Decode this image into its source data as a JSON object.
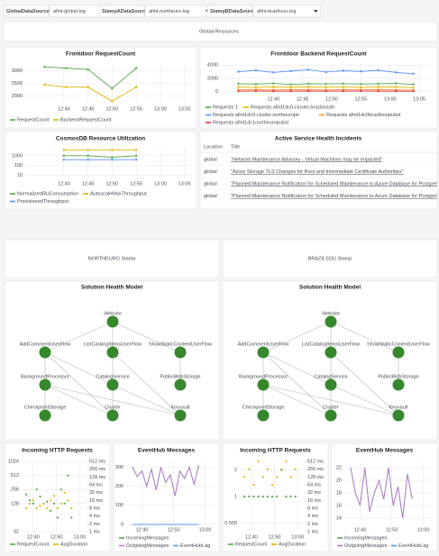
{
  "toolbar": {
    "variables": [
      {
        "label": "GlobalDataSource",
        "value": "afint-global-log"
      },
      {
        "label": "StampADataSource",
        "value": "afint-northeuro-log"
      },
      {
        "label": "StampBDataSource",
        "value": "afint-brazilsou-log"
      }
    ]
  },
  "row_title": "Global Resources",
  "incidents": {
    "title": "Active Service Health Incidents",
    "columns": [
      "Location",
      "Title"
    ],
    "rows": [
      [
        "global",
        "\"Network Maintenance Advisory - Virtual Machines may be impacted\""
      ],
      [
        "global",
        "\"Azure Storage TLS Changes for Root and Intermediate Certificate Authorities\""
      ],
      [
        "global",
        "\"Planned Maintenance Notification for Scheduled Maintenance to Azure Database for PostgreSQL\""
      ],
      [
        "global",
        "\"Planned Maintenance Notification for Scheduled Maintenance to Azure Database for PostgreSQL\""
      ]
    ]
  },
  "stamps": [
    {
      "title": "NORTHEURO Stamp",
      "health_model_title": "Solution Health Model"
    },
    {
      "title": "BRAZILSOU Stamp",
      "health_model_title": "Solution Health Model"
    }
  ],
  "health_model_nodes": [
    "Website",
    "AddCommentUserFlow",
    "ListCatalogItemsUserFlow",
    "ShowStaticContentUserFlow",
    "BackgroundProcessor",
    "CatalogService",
    "PublicBlobStorage",
    "CheckpointStorage",
    "Cluster",
    "Keyvault"
  ],
  "chart_data": [
    {
      "type": "line",
      "title": "Frontdoor RequestCount",
      "points": true,
      "grid": true,
      "x": [
        36,
        40.5,
        45,
        50,
        55
      ],
      "xlim": [
        32,
        66
      ],
      "xticks": [
        {
          "value": 40,
          "label": "12:40"
        },
        {
          "value": 45,
          "label": "12:45"
        },
        {
          "value": 50,
          "label": "12:50"
        },
        {
          "value": 55,
          "label": "12:55"
        },
        {
          "value": 60,
          "label": "13:00"
        },
        {
          "value": 65,
          "label": "13:05"
        }
      ],
      "ylim": [
        1700,
        3300
      ],
      "yticks": [
        2000,
        2500,
        3000
      ],
      "series": [
        {
          "name": "RequestCount",
          "color": "#56a64b",
          "values": [
            3150,
            3100,
            3050,
            2300,
            3100
          ]
        },
        {
          "name": "BackendRequestCount",
          "color": "#e0b400",
          "values": [
            2450,
            2350,
            2350,
            1800,
            2350
          ]
        }
      ]
    },
    {
      "type": "line",
      "title": "Frontdoor Backend RequestCount",
      "points": true,
      "grid": true,
      "x": [
        34,
        37,
        40,
        43,
        46,
        49,
        52,
        55,
        58,
        61,
        64
      ],
      "xlim": [
        31,
        67
      ],
      "xticks": [
        {
          "value": 40,
          "label": "12:40"
        },
        {
          "value": 45,
          "label": "12:45"
        },
        {
          "value": 50,
          "label": "12:50"
        },
        {
          "value": 55,
          "label": "12:55"
        },
        {
          "value": 60,
          "label": "13:00"
        },
        {
          "value": 65,
          "label": "13:05"
        }
      ],
      "ylim": [
        -300,
        4300
      ],
      "yticks": [
        0,
        2000,
        4000
      ],
      "series": [
        {
          "name": "Requests 1",
          "color": "#56a64b",
          "values": [
            1200,
            1150,
            1250,
            1100,
            1200,
            1180,
            1220,
            1150,
            1200,
            1250,
            1100
          ]
        },
        {
          "name": "Requests afint1dc0-cluster.brazilsouth",
          "color": "#e0b400",
          "values": [
            700,
            650,
            720,
            680,
            700,
            690,
            710,
            650,
            700,
            720,
            600
          ]
        },
        {
          "name": "Requests afint1dc0-cluster.northeurope",
          "color": "#5794f2",
          "values": [
            3000,
            3200,
            2900,
            3100,
            3300,
            2950,
            3150,
            3050,
            3200,
            2900,
            2700
          ]
        },
        {
          "name": "Requests afint1dc0brazilsoupubst",
          "color": "#ff9830",
          "values": [
            300,
            320,
            280,
            310,
            300,
            290,
            310,
            300,
            320,
            280,
            250
          ]
        },
        {
          "name": "Requests afint1dc1northeuropubst",
          "color": "#e02f44",
          "values": [
            100,
            110,
            90,
            100,
            105,
            95,
            100,
            110,
            100,
            90,
            80
          ]
        }
      ]
    },
    {
      "type": "line",
      "title": "CosmosDB Resource Utilization",
      "points": true,
      "grid": true,
      "log_scale": true,
      "x": [
        40,
        45,
        50,
        55
      ],
      "xlim": [
        32,
        66
      ],
      "xticks": [
        {
          "value": 40,
          "label": "12:40"
        },
        {
          "value": 45,
          "label": "12:45"
        },
        {
          "value": 50,
          "label": "12:50"
        },
        {
          "value": 55,
          "label": "12:55"
        },
        {
          "value": 60,
          "label": "13:00"
        },
        {
          "value": 65,
          "label": "13:05"
        }
      ],
      "ylim": [
        5,
        8000
      ],
      "yticks": [
        10,
        100,
        1000
      ],
      "series": [
        {
          "name": "NormalizedRUConsumption",
          "color": "#56a64b",
          "values": [
            1000,
            1000,
            700,
            1000
          ]
        },
        {
          "name": "AutoscaleMaxThroughput",
          "color": "#e0b400",
          "values": [
            4000,
            4000,
            4000,
            4000
          ]
        },
        {
          "name": "ProvisionedThroughput",
          "color": "#5794f2",
          "values": [
            400,
            400,
            400,
            400
          ]
        }
      ]
    },
    {
      "type": "scatter",
      "title": "Incoming HTTP Requests",
      "grid": true,
      "log_scale": true,
      "x": [
        37,
        38.5,
        40,
        41.5,
        43,
        44.5,
        46,
        47.5,
        49,
        50.5,
        52,
        53.5,
        55,
        56.5
      ],
      "xlim": [
        35,
        63
      ],
      "xticks": [
        {
          "value": 40,
          "label": "12:40"
        },
        {
          "value": 50,
          "label": "12:50"
        },
        {
          "value": 60,
          "label": "13:00"
        }
      ],
      "ylim": [
        32,
        1024
      ],
      "yticks": [
        1024,
        512,
        256,
        128,
        32
      ],
      "y2lim": [
        1,
        512
      ],
      "y2ticks": [
        {
          "value": 512,
          "label": "512 ms"
        },
        {
          "value": 256,
          "label": "256 ms"
        },
        {
          "value": 128,
          "label": "128 ms"
        },
        {
          "value": 64,
          "label": "64 ms"
        },
        {
          "value": 32,
          "label": "32 ms"
        },
        {
          "value": 16,
          "label": "16 ms"
        },
        {
          "value": 8,
          "label": "8 ms"
        },
        {
          "value": 4,
          "label": "4 ms"
        },
        {
          "value": 2,
          "label": "2 ms"
        },
        {
          "value": 1,
          "label": "1 ms"
        }
      ],
      "series": [
        {
          "name": "RequestCount",
          "color": "#56a64b",
          "values": [
            200,
            150,
            128,
            256,
            180,
            128,
            140,
            90,
            128,
            64,
            256,
            128,
            512,
            64
          ]
        },
        {
          "name": "AvgDuration",
          "color": "#e0b400",
          "axis": "y2",
          "values": [
            8,
            12,
            16,
            8,
            10,
            12,
            8,
            16,
            24,
            8,
            12,
            32,
            16,
            8
          ]
        }
      ]
    },
    {
      "type": "line",
      "title": "EventHub Messages",
      "grid": true,
      "x": [
        37,
        38.5,
        40,
        41.5,
        43,
        44.5,
        46,
        47.5,
        49,
        50.5,
        52,
        53.5,
        55,
        56.5,
        58
      ],
      "xlim": [
        35,
        63
      ],
      "xticks": [
        {
          "value": 40,
          "label": "12:40"
        },
        {
          "value": 50,
          "label": "12:50"
        },
        {
          "value": 60,
          "label": "13:00"
        }
      ],
      "ylim": [
        0,
        330
      ],
      "yticks": [
        0,
        100,
        200,
        300
      ],
      "series": [
        {
          "name": "IncomingMessages",
          "color": "#56a64b",
          "values": [
            300,
            250,
            280,
            200,
            290,
            180,
            300,
            220,
            260,
            150,
            280,
            240,
            300,
            210,
            310
          ]
        },
        {
          "name": "OutgoingMessages",
          "color": "#b877d9",
          "values": [
            300,
            250,
            280,
            200,
            290,
            180,
            300,
            220,
            260,
            150,
            280,
            240,
            300,
            210,
            310
          ]
        },
        {
          "name": "EventHubLag",
          "color": "#5794f2",
          "values": [
            0,
            0,
            0,
            0,
            0,
            0,
            0,
            0,
            0,
            0,
            0,
            0,
            0,
            0,
            0
          ]
        }
      ]
    },
    {
      "type": "scatter",
      "title": "Incoming HTTP Requests",
      "grid": true,
      "log_scale": true,
      "x": [
        37,
        39,
        41,
        43,
        45,
        47,
        49,
        51,
        53,
        55,
        57,
        59
      ],
      "xlim": [
        35,
        63
      ],
      "xticks": [
        {
          "value": 40,
          "label": "12:40"
        },
        {
          "value": 50,
          "label": "12:50"
        },
        {
          "value": 60,
          "label": "13:00"
        }
      ],
      "ylim": [
        0.4,
        2.5
      ],
      "yticks": [
        2,
        1,
        {
          "value": 0.5,
          "label": "0.500"
        }
      ],
      "y2lim": [
        1,
        512
      ],
      "y2ticks": [
        {
          "value": 512,
          "label": "512 ms"
        },
        {
          "value": 256,
          "label": "256 ms"
        },
        {
          "value": 128,
          "label": "128 ms"
        },
        {
          "value": 64,
          "label": "64 ms"
        },
        {
          "value": 32,
          "label": "32 ms"
        },
        {
          "value": 16,
          "label": "16 ms"
        },
        {
          "value": 8,
          "label": "8 ms"
        },
        {
          "value": 4,
          "label": "4 ms"
        },
        {
          "value": 2,
          "label": "2 ms"
        },
        {
          "value": 1,
          "label": "1 ms"
        }
      ],
      "series": [
        {
          "name": "RequestCount",
          "color": "#56a64b",
          "values": [
            1,
            1,
            1,
            1,
            1,
            1,
            1,
            1,
            2,
            1,
            1,
            1
          ]
        },
        {
          "name": "AvgDuration",
          "color": "#e0b400",
          "axis": "y2",
          "values": [
            128,
            256,
            64,
            512,
            128,
            256,
            64,
            128,
            256,
            512,
            128,
            256
          ]
        }
      ]
    },
    {
      "type": "line",
      "title": "EventHub Messages",
      "grid": true,
      "x": [
        37,
        38.5,
        40,
        41.5,
        43,
        44.5,
        46,
        47.5,
        49,
        50.5,
        52,
        53.5,
        55,
        56.5
      ],
      "xlim": [
        35,
        63
      ],
      "xticks": [
        {
          "value": 40,
          "label": "12:40"
        },
        {
          "value": 50,
          "label": "12:50"
        },
        {
          "value": 60,
          "label": "13:00"
        }
      ],
      "ylim": [
        13,
        23
      ],
      "yticks": [
        14,
        16,
        18,
        20,
        22
      ],
      "series": [
        {
          "name": "IncomingMessages",
          "color": "#56a64b",
          "values": [
            22,
            18,
            16,
            22,
            15,
            18,
            20,
            17,
            22,
            16,
            19,
            14,
            21,
            17
          ]
        },
        {
          "name": "OutgoingMessages",
          "color": "#b877d9",
          "values": [
            22,
            18,
            16,
            22,
            15,
            18,
            20,
            17,
            22,
            16,
            19,
            14,
            21,
            17
          ]
        },
        {
          "name": "EventHubLag",
          "color": "#5794f2",
          "values": [
            null,
            null,
            null,
            null,
            null,
            null,
            null,
            null,
            null,
            null,
            null,
            null,
            null,
            null
          ]
        }
      ]
    }
  ]
}
